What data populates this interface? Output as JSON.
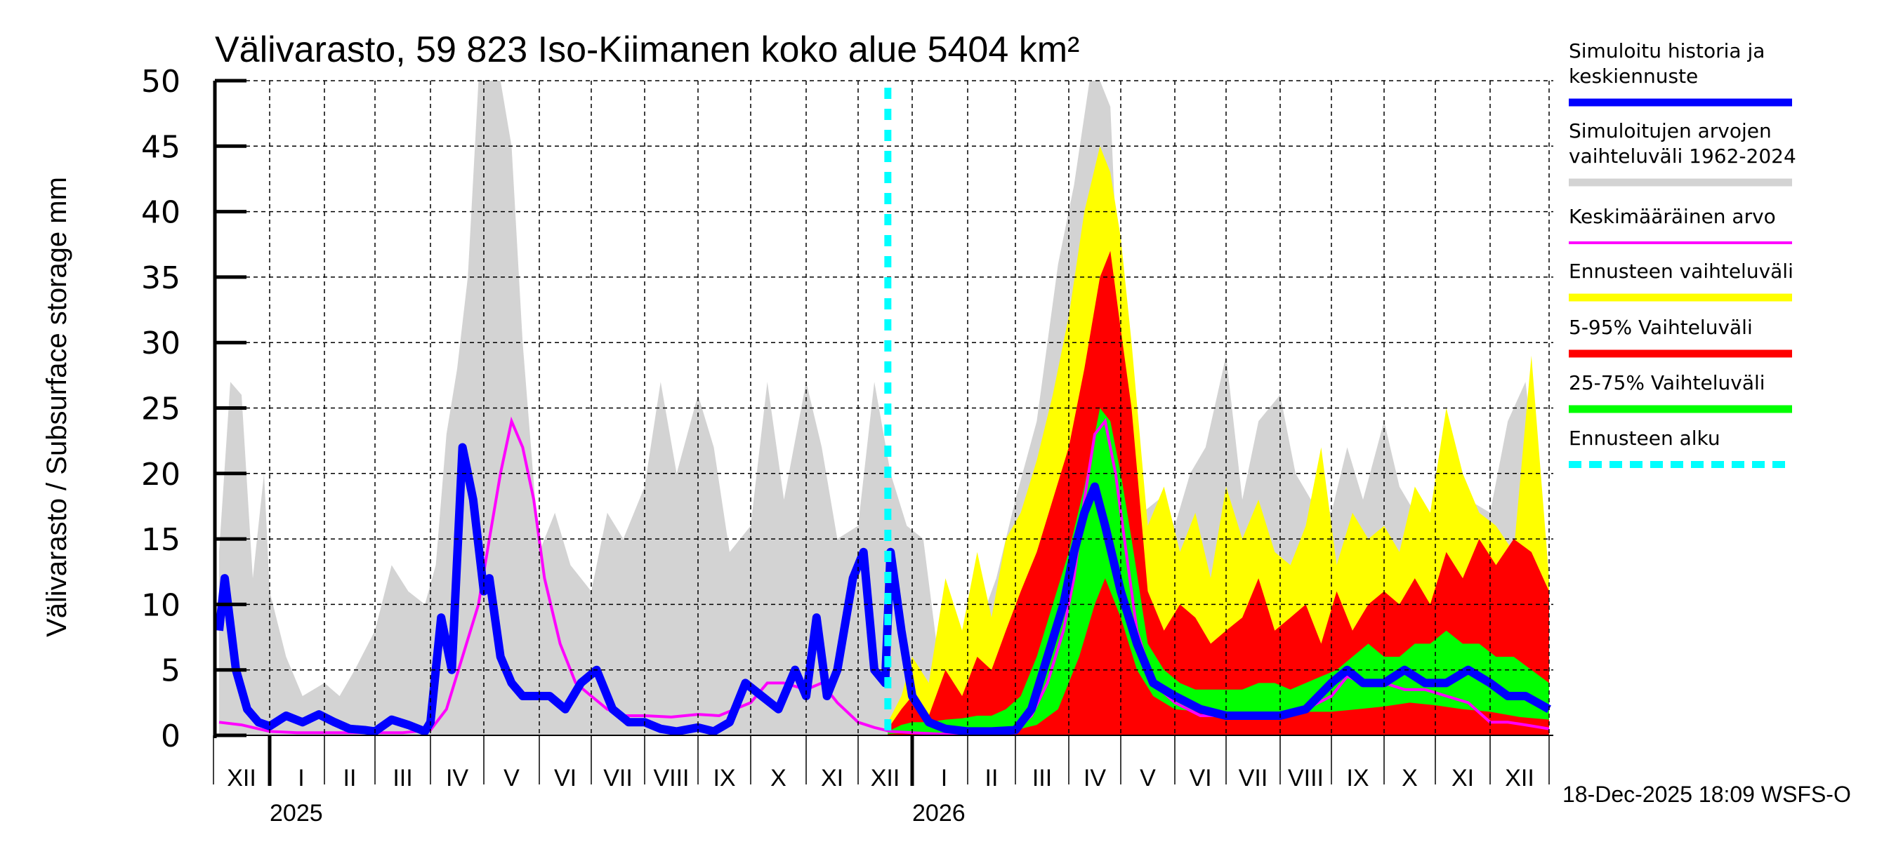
{
  "chart_data": {
    "type": "area",
    "title": "Välivarasto, 59 823 Iso-Kiimanen koko alue 5404 km²",
    "ylabel": "Välivarasto / Subsurface storage  mm",
    "xlabel": "",
    "ylim": [
      0,
      50
    ],
    "yticks": [
      0,
      5,
      10,
      15,
      20,
      25,
      30,
      35,
      40,
      45,
      50
    ],
    "grid": true,
    "legend_position": "right",
    "x_unit": "month index from 2024-12-01",
    "xlim": [
      0.1,
      25.0
    ],
    "month_labels": [
      "XII",
      "I",
      "II",
      "III",
      "IV",
      "V",
      "VI",
      "VII",
      "VIII",
      "IX",
      "X",
      "XI",
      "XII",
      "I",
      "II",
      "III",
      "IV",
      "V",
      "VI",
      "VII",
      "VIII",
      "IX",
      "X",
      "XI",
      "XII"
    ],
    "year_labels": [
      {
        "label": "2025",
        "month_index": 1
      },
      {
        "label": "2026",
        "month_index": 13
      }
    ],
    "forecast_start": 12.55,
    "timestamp": "18-Dec-2025 18:09 WSFS-O",
    "legend": [
      {
        "label": "Simuloitu historia ja keskiennuste",
        "color": "#0000ff",
        "style": "thick"
      },
      {
        "label": "Simuloitujen arvojen vaihteluväli 1962-2024",
        "color": "#d3d3d3",
        "style": "thick"
      },
      {
        "label": "Keskimääräinen arvo",
        "color": "#ff00ff",
        "style": "thin"
      },
      {
        "label": "Ennusteen vaihteluväli",
        "color": "#ffff00",
        "style": "thick"
      },
      {
        "label": "5-95% Vaihteluväli",
        "color": "#ff0000",
        "style": "thick"
      },
      {
        "label": "25-75% Vaihteluväli",
        "color": "#00ff00",
        "style": "thick"
      },
      {
        "label": "Ennusteen alku",
        "color": "#00ffff",
        "style": "dashed"
      }
    ],
    "series": [
      {
        "name": "Simuloitujen arvojen vaihteluväli 1962-2024 (max)",
        "color": "#d3d3d3",
        "x": [
          0.1,
          0.3,
          0.5,
          0.7,
          0.9,
          1.0,
          1.3,
          1.6,
          2.0,
          2.3,
          2.6,
          3.0,
          3.3,
          3.6,
          3.9,
          4.1,
          4.3,
          4.5,
          4.7,
          4.9,
          5.1,
          5.3,
          5.5,
          5.7,
          6.0,
          6.3,
          6.6,
          7.0,
          7.3,
          7.6,
          8.0,
          8.3,
          8.6,
          9.0,
          9.3,
          9.6,
          10.0,
          10.3,
          10.6,
          11.0,
          11.3,
          11.6,
          12.0,
          12.3,
          12.6,
          12.9,
          13.2,
          13.5,
          13.8,
          14.2,
          14.6,
          15.0,
          15.4,
          15.8,
          16.1,
          16.4,
          16.6,
          16.8,
          17.0,
          17.2,
          17.4,
          17.7,
          18.0,
          18.3,
          18.6,
          19.0,
          19.3,
          19.6,
          20.0,
          20.3,
          20.6,
          21.0,
          21.3,
          21.6,
          22.0,
          22.3,
          22.6,
          23.0,
          23.3,
          23.6,
          24.0,
          24.3,
          24.6,
          25.0
        ],
        "values": [
          14,
          27,
          26,
          12,
          20,
          11,
          6,
          3,
          4,
          3,
          5,
          8,
          13,
          11,
          10,
          13,
          23,
          28,
          35,
          50,
          50,
          50,
          45,
          30,
          14,
          17,
          13,
          11,
          17,
          15,
          19,
          27,
          20,
          26,
          22,
          14,
          16,
          27,
          18,
          27,
          22,
          15,
          16,
          27,
          20,
          16,
          15,
          5,
          4,
          8,
          12,
          18,
          24,
          36,
          42,
          50,
          50,
          48,
          30,
          22,
          17,
          18,
          16,
          20,
          22,
          29,
          18,
          24,
          26,
          20,
          18,
          17,
          22,
          18,
          24,
          19,
          17,
          14,
          16,
          18,
          17,
          24,
          27,
          12
        ]
      },
      {
        "name": "Ennusteen vaihteluväli (max)",
        "color": "#ffff00",
        "x": [
          12.55,
          12.8,
          13.0,
          13.3,
          13.6,
          13.9,
          14.2,
          14.5,
          14.8,
          15.1,
          15.4,
          15.7,
          16.0,
          16.3,
          16.6,
          16.8,
          17.0,
          17.2,
          17.5,
          17.8,
          18.1,
          18.4,
          18.7,
          19.0,
          19.3,
          19.6,
          19.9,
          20.2,
          20.5,
          20.8,
          21.1,
          21.4,
          21.7,
          22.0,
          22.3,
          22.6,
          22.9,
          23.2,
          23.5,
          23.8,
          24.1,
          24.4,
          24.7,
          25.0
        ],
        "values": [
          1,
          3,
          6,
          4,
          12,
          8,
          14,
          9,
          15,
          17,
          21,
          26,
          32,
          40,
          45,
          43,
          38,
          30,
          16,
          19,
          14,
          17,
          12,
          19,
          15,
          18,
          14,
          13,
          16,
          22,
          13,
          17,
          15,
          16,
          14,
          19,
          17,
          25,
          20,
          17,
          16,
          14,
          29,
          12
        ]
      },
      {
        "name": "5-95% Vaihteluväli (max)",
        "color": "#ff0000",
        "x": [
          12.55,
          12.8,
          13.0,
          13.3,
          13.6,
          13.9,
          14.2,
          14.5,
          14.8,
          15.1,
          15.4,
          15.7,
          16.0,
          16.3,
          16.6,
          16.8,
          17.0,
          17.2,
          17.5,
          17.8,
          18.1,
          18.4,
          18.7,
          19.0,
          19.3,
          19.6,
          19.9,
          20.2,
          20.5,
          20.8,
          21.1,
          21.4,
          21.7,
          22.0,
          22.3,
          22.6,
          22.9,
          23.2,
          23.5,
          23.8,
          24.1,
          24.4,
          24.7,
          25.0
        ],
        "values": [
          0.5,
          2,
          3,
          1.5,
          5,
          3,
          6,
          5,
          8,
          11,
          14,
          18,
          22,
          28,
          35,
          37,
          31,
          25,
          11,
          8,
          10,
          9,
          7,
          8,
          9,
          12,
          8,
          9,
          10,
          7,
          11,
          8,
          10,
          11,
          10,
          12,
          10,
          14,
          12,
          15,
          13,
          15,
          14,
          11
        ]
      },
      {
        "name": "25-75% Vaihteluväli (max)",
        "color": "#00ff00",
        "x": [
          12.55,
          12.8,
          13.0,
          13.3,
          13.6,
          13.9,
          14.2,
          14.5,
          14.8,
          15.1,
          15.4,
          15.7,
          16.0,
          16.3,
          16.6,
          16.8,
          17.0,
          17.2,
          17.5,
          17.8,
          18.1,
          18.4,
          18.7,
          19.0,
          19.3,
          19.6,
          19.9,
          20.2,
          20.5,
          20.8,
          21.1,
          21.4,
          21.7,
          22.0,
          22.3,
          22.6,
          22.9,
          23.2,
          23.5,
          23.8,
          24.1,
          24.4,
          24.7,
          25.0
        ],
        "values": [
          0.3,
          0.8,
          1,
          1,
          1.2,
          1.3,
          1.5,
          1.5,
          2,
          3,
          6,
          10,
          14,
          19,
          25,
          24,
          20,
          15,
          7,
          5,
          4,
          3.5,
          3.5,
          3.5,
          3.5,
          4,
          4,
          3.5,
          4,
          4.5,
          5,
          6,
          7,
          6,
          6,
          7,
          7,
          8,
          7,
          7,
          6,
          6,
          5,
          4
        ]
      },
      {
        "name": "25-75% Vaihteluväli (min)",
        "color": "#00ff00",
        "x": [
          12.55,
          13.0,
          13.5,
          14.0,
          14.5,
          15.0,
          15.4,
          15.8,
          16.2,
          16.5,
          16.7,
          17.0,
          17.3,
          17.6,
          18.0,
          18.5,
          19.0,
          19.5,
          20.0,
          20.5,
          21.0,
          21.5,
          22.0,
          22.5,
          23.0,
          23.5,
          24.0,
          24.5,
          25.0
        ],
        "values": [
          0.1,
          0.2,
          0.2,
          0.3,
          0.3,
          0.4,
          0.8,
          2,
          6,
          10,
          12,
          9,
          5,
          3,
          2,
          1.8,
          1.6,
          1.8,
          1.7,
          1.8,
          1.8,
          2,
          2.2,
          2.5,
          2.3,
          2,
          1.8,
          1.4,
          1.2
        ]
      },
      {
        "name": "Simuloitu historia ja keskiennuste",
        "color": "#0000ff",
        "x": [
          0.1,
          0.2,
          0.4,
          0.6,
          0.8,
          1.0,
          1.3,
          1.6,
          1.9,
          2.2,
          2.5,
          2.8,
          3.0,
          3.3,
          3.6,
          3.9,
          4.0,
          4.2,
          4.4,
          4.6,
          4.8,
          5.0,
          5.1,
          5.3,
          5.5,
          5.7,
          5.9,
          6.2,
          6.5,
          6.8,
          7.1,
          7.4,
          7.7,
          8.0,
          8.3,
          8.6,
          9.0,
          9.3,
          9.6,
          9.9,
          10.2,
          10.5,
          10.8,
          11.0,
          11.2,
          11.4,
          11.6,
          11.9,
          12.1,
          12.3,
          12.5,
          12.6,
          12.8,
          13.0,
          13.3,
          13.6,
          14.0,
          14.5,
          15.0,
          15.3,
          15.6,
          15.9,
          16.1,
          16.3,
          16.5,
          16.7,
          17.0,
          17.3,
          17.6,
          18.0,
          18.5,
          19.0,
          19.5,
          20.0,
          20.5,
          21.0,
          21.3,
          21.6,
          22.0,
          22.4,
          22.8,
          23.2,
          23.6,
          24.0,
          24.3,
          24.6,
          25.0
        ],
        "values": [
          8,
          12,
          5,
          2,
          1,
          0.7,
          1.5,
          1,
          1.6,
          1,
          0.5,
          0.4,
          0.3,
          1.2,
          0.8,
          0.3,
          1,
          9,
          5,
          22,
          18,
          11,
          12,
          6,
          4,
          3,
          3,
          3,
          2,
          4,
          5,
          2,
          1,
          1,
          0.5,
          0.3,
          0.6,
          0.3,
          1,
          4,
          3,
          2,
          5,
          3,
          9,
          3,
          5,
          12,
          14,
          5,
          4,
          14,
          8,
          3,
          1,
          0.5,
          0.3,
          0.3,
          0.4,
          2,
          6,
          10,
          14,
          17,
          19,
          16,
          11,
          7,
          4,
          3,
          2,
          1.5,
          1.5,
          1.5,
          2,
          4,
          5,
          4,
          4,
          5,
          4,
          4,
          5,
          4,
          3,
          3,
          2
        ]
      },
      {
        "name": "Keskimääräinen arvo",
        "color": "#ff00ff",
        "x": [
          0.1,
          0.5,
          1.0,
          1.5,
          2.0,
          2.5,
          3.0,
          3.5,
          4.0,
          4.3,
          4.6,
          4.9,
          5.1,
          5.3,
          5.5,
          5.7,
          5.9,
          6.1,
          6.4,
          6.7,
          7.0,
          7.3,
          7.6,
          8.0,
          8.5,
          9.0,
          9.4,
          9.7,
          10.0,
          10.3,
          10.6,
          11.0,
          11.3,
          11.6,
          12.0,
          12.3,
          12.6,
          13.0,
          13.5,
          14.0,
          14.5,
          15.0,
          15.3,
          15.6,
          15.9,
          16.1,
          16.3,
          16.5,
          16.7,
          16.9,
          17.1,
          17.3,
          17.6,
          18.0,
          18.5,
          19.0,
          19.5,
          20.0,
          20.5,
          21.0,
          21.3,
          21.6,
          22.0,
          22.4,
          22.8,
          23.2,
          23.6,
          24.0,
          24.3,
          24.6,
          25.0
        ],
        "values": [
          1,
          0.8,
          0.3,
          0.2,
          0.2,
          0.2,
          0.2,
          0.2,
          0.4,
          2,
          6,
          10,
          15,
          20,
          24,
          22,
          18,
          12,
          7,
          4,
          3,
          2,
          1.5,
          1.5,
          1.4,
          1.6,
          1.5,
          2,
          2.5,
          4,
          4,
          3.5,
          4,
          2.5,
          1,
          0.6,
          0.3,
          0.2,
          0.1,
          0.1,
          0.2,
          0.4,
          1.5,
          4,
          8,
          12,
          18,
          23,
          24,
          20,
          14,
          8,
          4,
          2.5,
          1.5,
          1.5,
          1.5,
          1.5,
          2,
          3,
          4.5,
          4,
          4,
          3.5,
          3.5,
          3,
          2.5,
          1,
          1,
          0.8,
          0.5
        ]
      }
    ]
  }
}
